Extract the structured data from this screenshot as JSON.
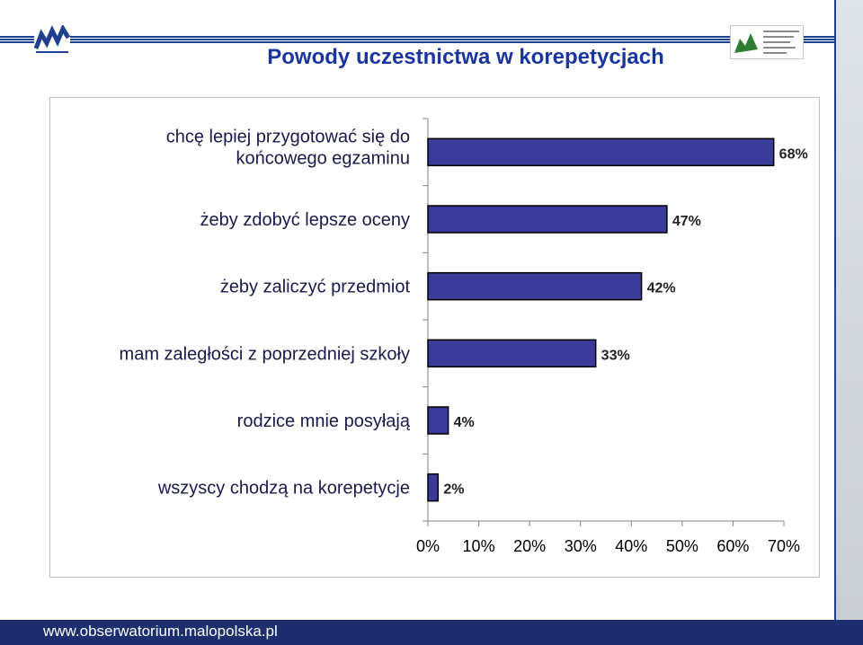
{
  "chart_data": {
    "type": "bar",
    "orientation": "horizontal",
    "title": "Powody uczestnictwa w korepetycjach",
    "categories": [
      [
        "chcę lepiej przygotować się do",
        "końcowego egzaminu"
      ],
      [
        "żeby zdobyć lepsze oceny"
      ],
      [
        "żeby zaliczyć przedmiot"
      ],
      [
        "mam zaległości z poprzedniej szkoły"
      ],
      [
        "rodzice mnie posyłają"
      ],
      [
        "wszyscy chodzą na korepetycje"
      ]
    ],
    "values": [
      68,
      47,
      42,
      33,
      4,
      2
    ],
    "value_labels": [
      "68%",
      "47%",
      "42%",
      "33%",
      "4%",
      "2%"
    ],
    "xlim": [
      0,
      70
    ],
    "xticks": [
      0,
      10,
      20,
      30,
      40,
      50,
      60,
      70
    ],
    "xtick_labels": [
      "0%",
      "10%",
      "20%",
      "30%",
      "40%",
      "50%",
      "60%",
      "70%"
    ],
    "bar_color": "#3b3b9a",
    "grid": false
  },
  "footer": {
    "url": "www.obserwatorium.malopolska.pl"
  },
  "colors": {
    "title": "#1a35a0",
    "footer_bg": "#1c2e6e",
    "bar": "#3b3b9a"
  }
}
